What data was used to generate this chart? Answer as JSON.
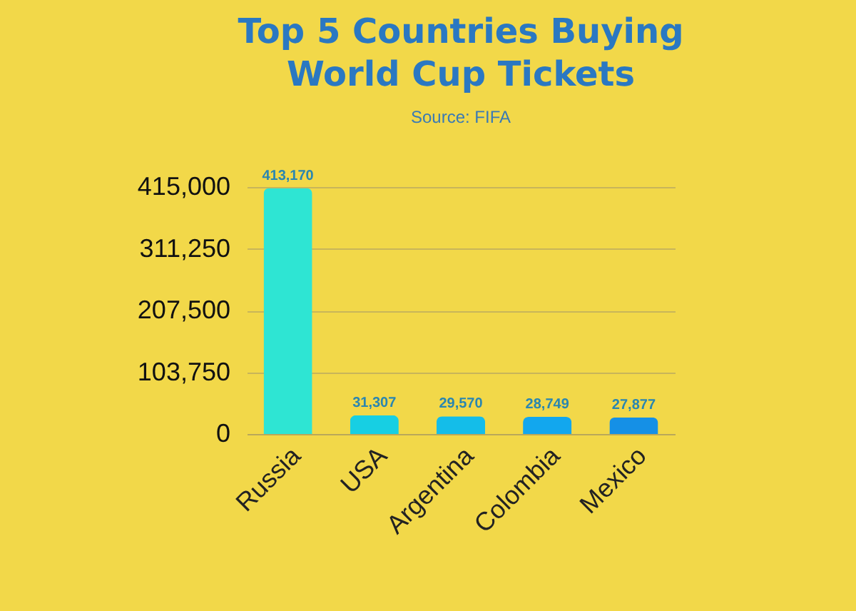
{
  "chart_data": {
    "type": "bar",
    "title": [
      "Top 5 Countries Buying",
      "World Cup Tickets"
    ],
    "subtitle": "Source: FIFA",
    "categories": [
      "Russia",
      "USA",
      "Argentina",
      "Colombia",
      "Mexico"
    ],
    "values": [
      413170,
      31307,
      29570,
      28749,
      27877
    ],
    "colors": [
      "#2ee5d3",
      "#17cfe3",
      "#14bde9",
      "#12a7ee",
      "#1590e6"
    ],
    "value_labels": [
      "413,170",
      "31,307",
      "29,570",
      "28,749",
      "27,877"
    ],
    "ylim": [
      0,
      415000
    ],
    "yticks": [
      0,
      {
        "value": 103750,
        "label": "103,750"
      },
      {
        "value": 207500,
        "label": "207,500"
      },
      {
        "value": 311250,
        "label": "311,250"
      },
      {
        "value": 415000,
        "label": "415,000"
      }
    ],
    "grid": "y"
  }
}
